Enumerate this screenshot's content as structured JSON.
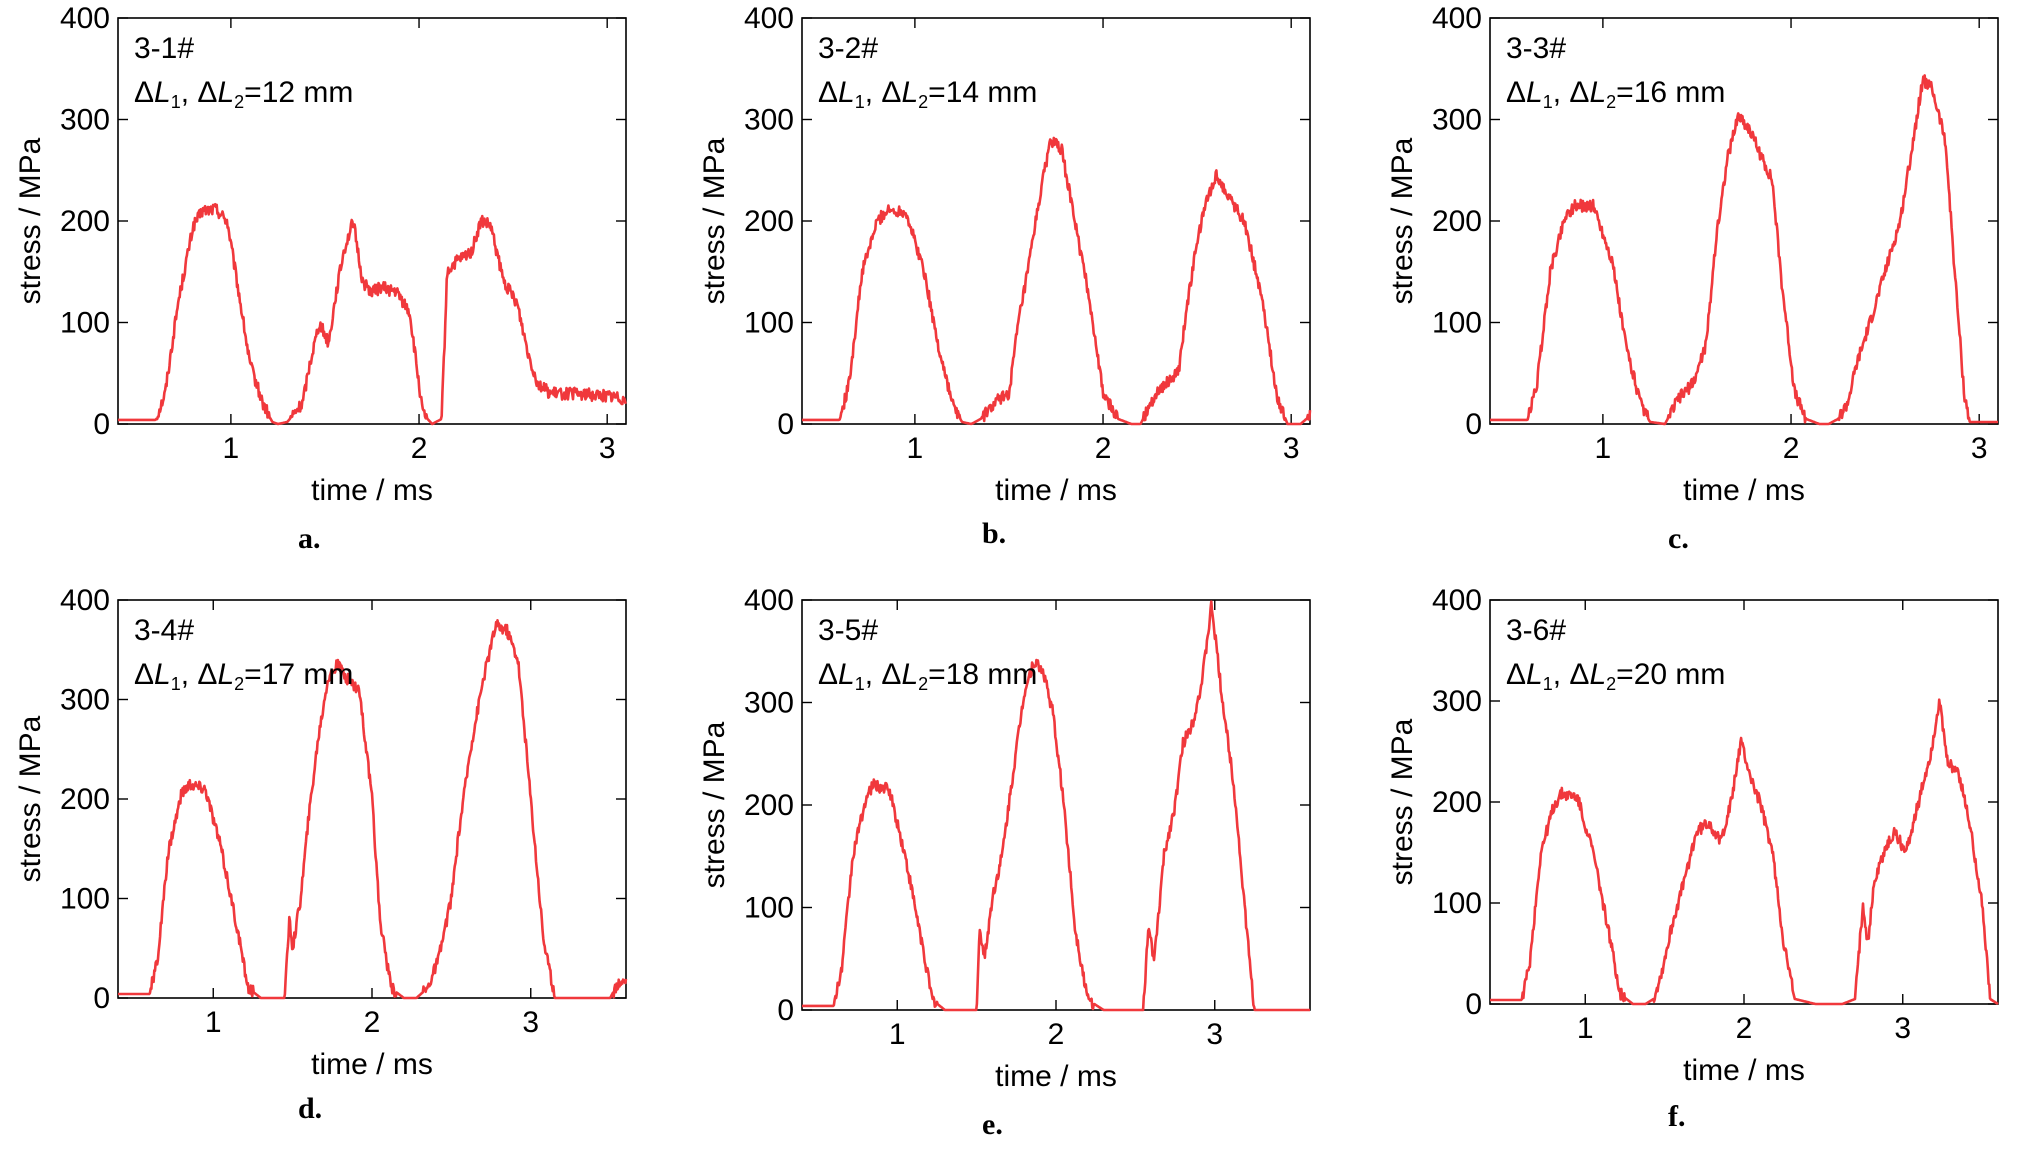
{
  "figure": {
    "line_color": "#f0383c",
    "ylabel": "stress / MPa",
    "xlabel": "time / ms"
  },
  "chart_data": [
    {
      "type": "line",
      "caption": "a.",
      "sample": "3-1#",
      "condition": "ΔL1, ΔL2=12 mm",
      "xlim": [
        0.4,
        3.1
      ],
      "ylim": [
        0,
        400
      ],
      "xticks": [
        1,
        2,
        3
      ],
      "yticks": [
        0,
        100,
        200,
        300,
        400
      ],
      "xlabel": "time / ms",
      "ylabel": "stress / MPa",
      "x": [
        0.4,
        0.6,
        0.65,
        0.72,
        0.8,
        0.85,
        0.92,
        0.98,
        1.05,
        1.1,
        1.17,
        1.22,
        1.25,
        1.3,
        1.38,
        1.42,
        1.47,
        1.52,
        1.56,
        1.6,
        1.65,
        1.7,
        1.75,
        1.8,
        1.88,
        1.95,
        2.02,
        2.07,
        2.12,
        2.15,
        2.2,
        2.28,
        2.33,
        2.38,
        2.45,
        2.52,
        2.58,
        2.63,
        2.7,
        2.8,
        3.0,
        3.1
      ],
      "y": [
        4,
        4,
        30,
        120,
        195,
        210,
        212,
        200,
        120,
        60,
        20,
        2,
        0,
        2,
        20,
        60,
        100,
        80,
        130,
        170,
        200,
        140,
        130,
        135,
        130,
        110,
        10,
        0,
        5,
        150,
        160,
        170,
        200,
        195,
        140,
        120,
        70,
        40,
        30,
        30,
        28,
        25
      ],
      "noise": 6
    },
    {
      "type": "line",
      "caption": "b.",
      "sample": "3-2#",
      "condition": "ΔL1, ΔL2=14 mm",
      "xlim": [
        0.4,
        3.1
      ],
      "ylim": [
        0,
        400
      ],
      "xticks": [
        1,
        2,
        3
      ],
      "yticks": [
        0,
        100,
        200,
        300,
        400
      ],
      "xlabel": "time / ms",
      "ylabel": "stress / MPa",
      "x": [
        0.4,
        0.6,
        0.65,
        0.72,
        0.8,
        0.85,
        0.95,
        1.05,
        1.12,
        1.2,
        1.25,
        1.3,
        1.35,
        1.45,
        1.5,
        1.55,
        1.6,
        1.66,
        1.72,
        1.78,
        1.85,
        1.93,
        2.0,
        2.08,
        2.15,
        2.2,
        2.25,
        2.3,
        2.4,
        2.45,
        2.5,
        2.55,
        2.6,
        2.65,
        2.75,
        2.85,
        2.92,
        2.98,
        3.05,
        3.1
      ],
      "y": [
        4,
        4,
        40,
        150,
        200,
        210,
        210,
        150,
        80,
        20,
        2,
        0,
        5,
        25,
        30,
        100,
        150,
        220,
        280,
        270,
        200,
        120,
        30,
        5,
        0,
        0,
        20,
        35,
        50,
        120,
        180,
        220,
        245,
        230,
        200,
        120,
        30,
        0,
        0,
        8
      ],
      "noise": 6
    },
    {
      "type": "line",
      "caption": "c.",
      "sample": "3-3#",
      "condition": "ΔL1, ΔL2=16 mm",
      "xlim": [
        0.4,
        3.1
      ],
      "ylim": [
        0,
        400
      ],
      "xticks": [
        1,
        2,
        3
      ],
      "yticks": [
        0,
        100,
        200,
        300,
        400
      ],
      "xlabel": "time / ms",
      "ylabel": "stress / MPa",
      "x": [
        0.4,
        0.6,
        0.65,
        0.72,
        0.8,
        0.85,
        0.95,
        1.05,
        1.12,
        1.2,
        1.25,
        1.33,
        1.4,
        1.48,
        1.55,
        1.6,
        1.66,
        1.72,
        1.78,
        1.85,
        1.9,
        1.95,
        2.02,
        2.08,
        2.15,
        2.2,
        2.25,
        2.3,
        2.35,
        2.42,
        2.5,
        2.58,
        2.65,
        2.7,
        2.75,
        2.82,
        2.87,
        2.92,
        2.95,
        3.1
      ],
      "y": [
        4,
        4,
        40,
        150,
        205,
        215,
        215,
        160,
        80,
        20,
        2,
        0,
        25,
        40,
        80,
        180,
        260,
        305,
        290,
        260,
        240,
        140,
        30,
        5,
        0,
        0,
        5,
        20,
        60,
        100,
        150,
        200,
        280,
        340,
        330,
        280,
        150,
        30,
        2,
        2
      ],
      "noise": 6
    },
    {
      "type": "line",
      "caption": "d.",
      "sample": "3-4#",
      "condition": "ΔL1, ΔL2=17 mm",
      "xlim": [
        0.4,
        3.6
      ],
      "ylim": [
        0,
        400
      ],
      "xticks": [
        1,
        2,
        3
      ],
      "yticks": [
        0,
        100,
        200,
        300,
        400
      ],
      "xlabel": "time / ms",
      "ylabel": "stress / MPa",
      "x": [
        0.4,
        0.6,
        0.65,
        0.72,
        0.8,
        0.85,
        0.95,
        1.05,
        1.15,
        1.22,
        1.3,
        1.45,
        1.48,
        1.5,
        1.55,
        1.6,
        1.66,
        1.72,
        1.78,
        1.85,
        1.92,
        2.0,
        2.05,
        2.12,
        2.2,
        2.28,
        2.35,
        2.42,
        2.5,
        2.55,
        2.62,
        2.7,
        2.78,
        2.85,
        2.92,
        3.0,
        3.08,
        3.15,
        3.5,
        3.55,
        3.6
      ],
      "y": [
        4,
        4,
        40,
        150,
        205,
        215,
        210,
        150,
        70,
        10,
        0,
        0,
        80,
        50,
        100,
        180,
        260,
        320,
        335,
        320,
        310,
        200,
        80,
        10,
        0,
        0,
        10,
        40,
        100,
        170,
        250,
        320,
        375,
        370,
        340,
        200,
        60,
        0,
        0,
        15,
        18
      ],
      "noise": 6
    },
    {
      "type": "line",
      "caption": "e.",
      "sample": "3-5#",
      "condition": "ΔL1, ΔL2=18 mm",
      "xlim": [
        0.4,
        3.6
      ],
      "ylim": [
        0,
        400
      ],
      "xticks": [
        1,
        2,
        3
      ],
      "yticks": [
        0,
        100,
        200,
        300,
        400
      ],
      "xlabel": "time / ms",
      "ylabel": "stress / MPa",
      "x": [
        0.4,
        0.6,
        0.65,
        0.72,
        0.8,
        0.85,
        0.95,
        1.05,
        1.15,
        1.22,
        1.3,
        1.5,
        1.52,
        1.55,
        1.6,
        1.66,
        1.72,
        1.8,
        1.86,
        1.92,
        1.98,
        2.05,
        2.12,
        2.2,
        2.3,
        2.55,
        2.58,
        2.62,
        2.68,
        2.75,
        2.8,
        2.86,
        2.92,
        2.98,
        3.05,
        3.12,
        3.2,
        3.25,
        3.6
      ],
      "y": [
        4,
        4,
        40,
        150,
        205,
        220,
        215,
        150,
        70,
        10,
        0,
        0,
        80,
        50,
        110,
        150,
        220,
        310,
        340,
        330,
        290,
        200,
        80,
        10,
        0,
        0,
        80,
        50,
        150,
        200,
        260,
        280,
        320,
        395,
        300,
        220,
        80,
        0,
        0
      ],
      "noise": 6
    },
    {
      "type": "line",
      "caption": "f.",
      "sample": "3-6#",
      "condition": "ΔL1, ΔL2=20 mm",
      "xlim": [
        0.4,
        3.6
      ],
      "ylim": [
        0,
        400
      ],
      "xticks": [
        1,
        2,
        3
      ],
      "yticks": [
        0,
        100,
        200,
        300,
        400
      ],
      "xlabel": "time / ms",
      "ylabel": "stress / MPa",
      "x": [
        0.4,
        0.6,
        0.65,
        0.72,
        0.8,
        0.85,
        0.95,
        1.05,
        1.15,
        1.22,
        1.3,
        1.38,
        1.43,
        1.48,
        1.55,
        1.62,
        1.7,
        1.78,
        1.85,
        1.92,
        1.98,
        2.05,
        2.1,
        2.18,
        2.25,
        2.32,
        2.45,
        2.62,
        2.7,
        2.75,
        2.78,
        2.82,
        2.88,
        2.95,
        3.02,
        3.1,
        3.18,
        3.23,
        3.28,
        3.35,
        3.42,
        3.5,
        3.55,
        3.6
      ],
      "y": [
        4,
        4,
        40,
        150,
        195,
        208,
        205,
        150,
        70,
        10,
        0,
        0,
        5,
        30,
        80,
        120,
        170,
        180,
        160,
        200,
        260,
        220,
        200,
        150,
        60,
        5,
        0,
        0,
        5,
        100,
        60,
        120,
        150,
        170,
        150,
        200,
        250,
        300,
        240,
        230,
        180,
        100,
        5,
        0
      ],
      "noise": 6
    }
  ]
}
